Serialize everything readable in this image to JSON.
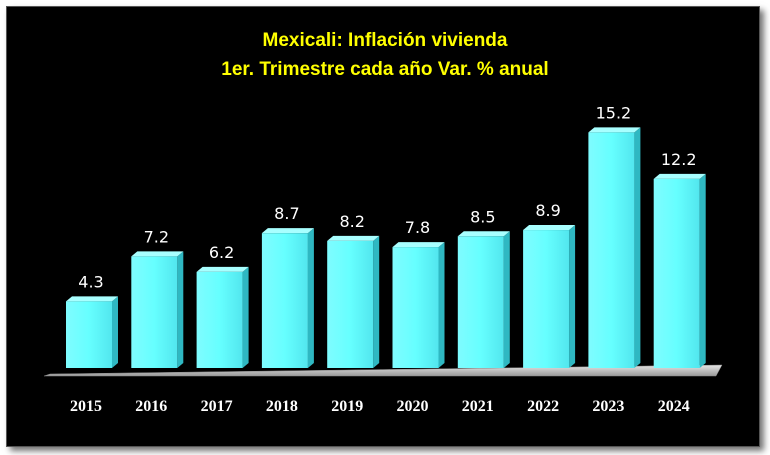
{
  "chart_data": {
    "type": "bar",
    "title": [
      "Mexicali: Inflación vivienda",
      "1er. Trimestre cada año Var. % anual"
    ],
    "categories": [
      "2015",
      "2016",
      "2017",
      "2018",
      "2019",
      "2020",
      "2021",
      "2022",
      "2023",
      "2024"
    ],
    "values": [
      4.3,
      7.2,
      6.2,
      8.7,
      8.2,
      7.8,
      8.5,
      8.9,
      15.2,
      12.2
    ],
    "data_labels": [
      "4.3",
      "7.2",
      "6.2",
      "8.7",
      "8.2",
      "7.8",
      "8.5",
      "8.9",
      "15.2",
      "12.2"
    ],
    "xlabel": "",
    "ylabel": "",
    "ylim": [
      0,
      16
    ],
    "grid": false,
    "legend": "none",
    "colors": {
      "background": "#000000",
      "bar": "#66ffff",
      "bar_side": "#2fb8c2",
      "bar_top": "#a8ffff",
      "floor": "#cfcfcf",
      "title": "#ffff00",
      "text": "#ffffff"
    }
  }
}
